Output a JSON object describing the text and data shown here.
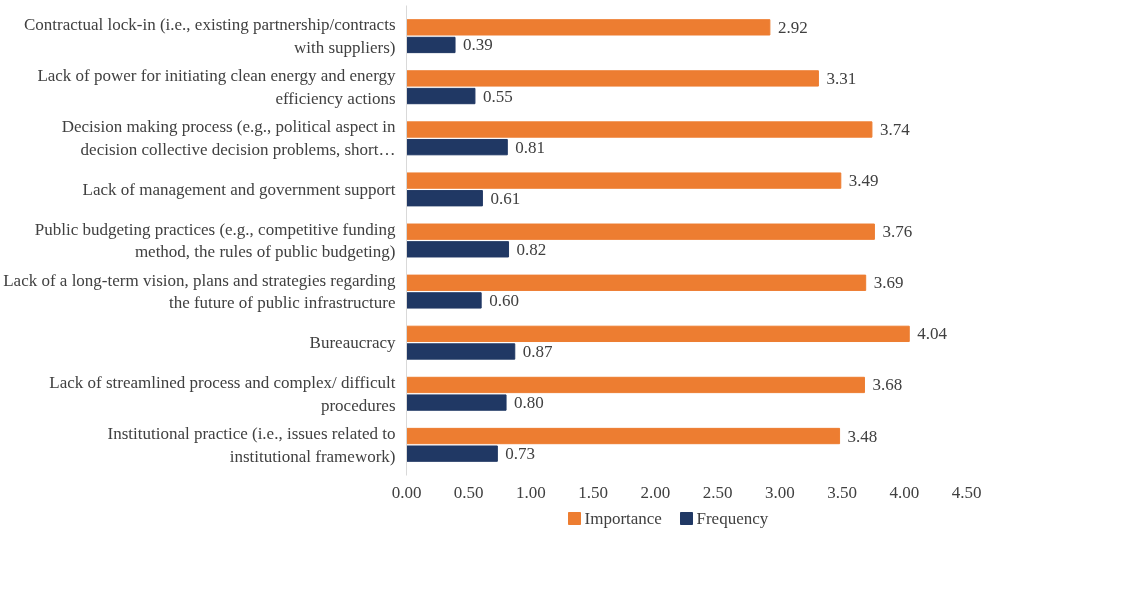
{
  "chart_data": {
    "type": "bar",
    "orientation": "horizontal",
    "categories": [
      "Contractual lock-in (i.e., existing partnership/contracts with suppliers)",
      "Lack of power for initiating clean energy and energy efficiency actions",
      "Decision making process (e.g., political aspect in decision collective decision problems, short…",
      "Lack of management and government support",
      "Public budgeting practices (e.g., competitive funding method, the rules of public budgeting)",
      "Lack of a long-term vision, plans and strategies regarding the future of public infrastructure",
      "Bureaucracy",
      "Lack of streamlined process and complex/ difficult procedures",
      "Institutional practice (i.e., issues related to institutional framework)"
    ],
    "series": [
      {
        "name": "Importance",
        "color": "#ed7d31",
        "values": [
          2.92,
          3.31,
          3.74,
          3.49,
          3.76,
          3.69,
          4.04,
          3.68,
          3.48
        ],
        "value_labels": [
          "2.92",
          "3.31",
          "3.74",
          "3.49",
          "3.76",
          "3.69",
          "4.04",
          "3.68",
          "3.48"
        ]
      },
      {
        "name": "Frequency",
        "color": "#203864",
        "values": [
          0.39,
          0.55,
          0.81,
          0.61,
          0.82,
          0.6,
          0.87,
          0.8,
          0.73
        ],
        "value_labels": [
          "0.39",
          "0.55",
          "0.81",
          "0.61",
          "0.82",
          "0.60",
          "0.87",
          "0.80",
          "0.73"
        ]
      }
    ],
    "xlim": [
      0,
      4.5
    ],
    "xticks": [
      {
        "value": 0,
        "label": "0.00"
      },
      {
        "value": 0.5,
        "label": "0.50"
      },
      {
        "value": 1,
        "label": "1.00"
      },
      {
        "value": 1.5,
        "label": "1.50"
      },
      {
        "value": 2,
        "label": "2.00"
      },
      {
        "value": 2.5,
        "label": "2.50"
      },
      {
        "value": 3,
        "label": "3.00"
      },
      {
        "value": 3.5,
        "label": "3.50"
      },
      {
        "value": 4,
        "label": "4.00"
      },
      {
        "value": 4.5,
        "label": "4.50"
      }
    ],
    "grid": false,
    "legend": "bottom"
  }
}
